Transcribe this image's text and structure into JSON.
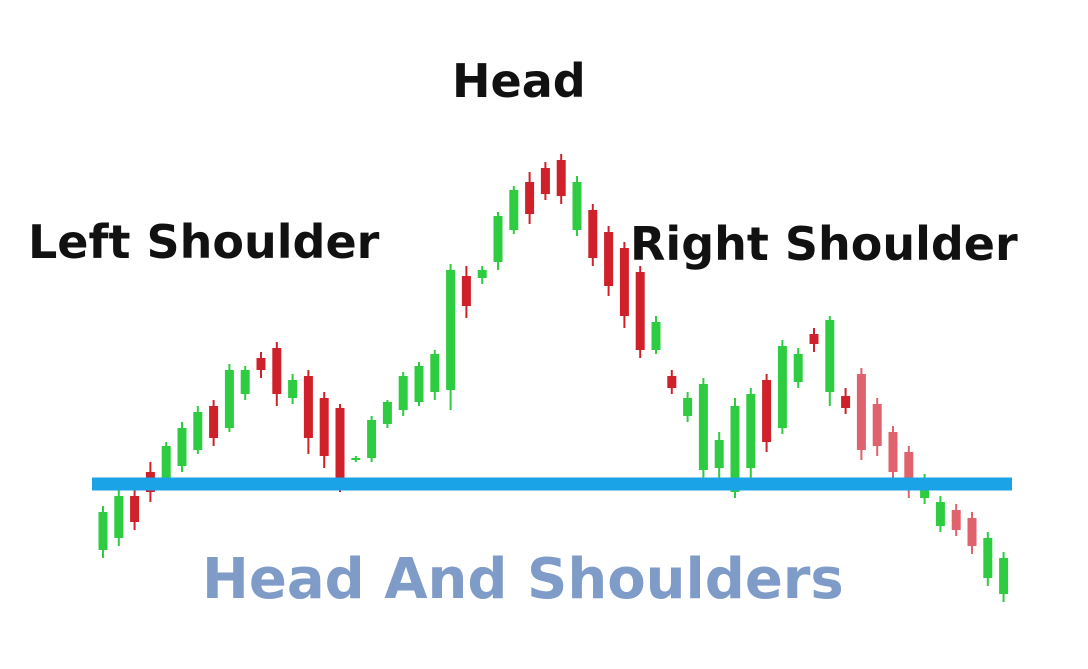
{
  "chart_data": {
    "type": "candlestick",
    "title": "Head And Shoulders",
    "annotations": [
      "Left Shoulder",
      "Head",
      "Right Shoulder"
    ],
    "neckline": {
      "y": 4.3,
      "color": "#1aa3e6"
    },
    "grid": false,
    "ylim": [
      0,
      22
    ],
    "colors": {
      "up": "#2ecc40",
      "down": "#d0212b",
      "down_light": "#e0626c",
      "title": "#7f9bc7"
    },
    "candles": [
      {
        "x": 1,
        "open": 1.0,
        "high": 3.2,
        "low": 0.6,
        "close": 2.9
      },
      {
        "x": 2,
        "open": 1.6,
        "high": 4.0,
        "low": 1.2,
        "close": 3.7
      },
      {
        "x": 3,
        "open": 3.7,
        "high": 4.2,
        "low": 2.0,
        "close": 2.4
      },
      {
        "x": 4,
        "open": 4.9,
        "high": 5.4,
        "low": 3.4,
        "close": 3.9
      },
      {
        "x": 5,
        "open": 4.4,
        "high": 6.4,
        "low": 4.2,
        "close": 6.2
      },
      {
        "x": 6,
        "open": 5.2,
        "high": 7.4,
        "low": 4.9,
        "close": 7.1
      },
      {
        "x": 7,
        "open": 6.0,
        "high": 8.2,
        "low": 5.8,
        "close": 7.9
      },
      {
        "x": 8,
        "open": 8.2,
        "high": 8.5,
        "low": 6.2,
        "close": 6.6
      },
      {
        "x": 9,
        "open": 7.1,
        "high": 10.3,
        "low": 6.9,
        "close": 10.0
      },
      {
        "x": 10,
        "open": 8.8,
        "high": 10.2,
        "low": 8.5,
        "close": 10.0
      },
      {
        "x": 11,
        "open": 10.6,
        "high": 10.9,
        "low": 9.6,
        "close": 10.0
      },
      {
        "x": 12,
        "open": 11.1,
        "high": 11.4,
        "low": 8.2,
        "close": 8.8
      },
      {
        "x": 13,
        "open": 8.6,
        "high": 9.8,
        "low": 8.3,
        "close": 9.5
      },
      {
        "x": 14,
        "open": 9.7,
        "high": 10.0,
        "low": 5.8,
        "close": 6.6
      },
      {
        "x": 15,
        "open": 8.6,
        "high": 8.9,
        "low": 5.1,
        "close": 5.7
      },
      {
        "x": 16,
        "open": 8.1,
        "high": 8.3,
        "low": 3.9,
        "close": 4.3
      },
      {
        "x": 17,
        "open": 5.5,
        "high": 5.7,
        "low": 5.4,
        "close": 5.6
      },
      {
        "x": 18,
        "open": 5.6,
        "high": 7.7,
        "low": 5.4,
        "close": 7.5
      },
      {
        "x": 19,
        "open": 7.3,
        "high": 8.5,
        "low": 7.1,
        "close": 8.4
      },
      {
        "x": 20,
        "open": 8.0,
        "high": 9.9,
        "low": 7.7,
        "close": 9.7
      },
      {
        "x": 21,
        "open": 8.4,
        "high": 10.4,
        "low": 8.2,
        "close": 10.2
      },
      {
        "x": 22,
        "open": 8.9,
        "high": 11.0,
        "low": 8.5,
        "close": 10.8
      },
      {
        "x": 23,
        "open": 9.0,
        "high": 15.3,
        "low": 8.0,
        "close": 15.0
      },
      {
        "x": 24,
        "open": 14.7,
        "high": 15.2,
        "low": 12.6,
        "close": 13.2
      },
      {
        "x": 25,
        "open": 14.6,
        "high": 15.2,
        "low": 14.3,
        "close": 15.0
      },
      {
        "x": 26,
        "open": 15.4,
        "high": 17.9,
        "low": 15.0,
        "close": 17.7
      },
      {
        "x": 27,
        "open": 17.0,
        "high": 19.2,
        "low": 16.8,
        "close": 19.0
      },
      {
        "x": 28,
        "open": 19.4,
        "high": 19.9,
        "low": 17.3,
        "close": 17.8
      },
      {
        "x": 29,
        "open": 20.1,
        "high": 20.4,
        "low": 18.5,
        "close": 18.8
      },
      {
        "x": 30,
        "open": 20.5,
        "high": 20.8,
        "low": 18.3,
        "close": 18.7
      },
      {
        "x": 31,
        "open": 17.0,
        "high": 19.7,
        "low": 16.7,
        "close": 19.4
      },
      {
        "x": 32,
        "open": 18.0,
        "high": 18.3,
        "low": 15.2,
        "close": 15.6
      },
      {
        "x": 33,
        "open": 16.9,
        "high": 17.2,
        "low": 13.7,
        "close": 14.2
      },
      {
        "x": 34,
        "open": 16.1,
        "high": 16.4,
        "low": 12.1,
        "close": 12.7
      },
      {
        "x": 35,
        "open": 14.9,
        "high": 15.2,
        "low": 10.6,
        "close": 11.0
      },
      {
        "x": 36,
        "open": 11.0,
        "high": 12.7,
        "low": 10.8,
        "close": 12.4
      },
      {
        "x": 37,
        "open": 9.7,
        "high": 10.0,
        "low": 8.8,
        "close": 9.1
      },
      {
        "x": 38,
        "open": 7.7,
        "high": 8.9,
        "low": 7.4,
        "close": 8.6
      },
      {
        "x": 39,
        "open": 5.0,
        "high": 9.6,
        "low": 4.6,
        "close": 9.3
      },
      {
        "x": 40,
        "open": 5.1,
        "high": 6.9,
        "low": 4.5,
        "close": 6.5
      },
      {
        "x": 41,
        "open": 3.9,
        "high": 8.6,
        "low": 3.6,
        "close": 8.2
      },
      {
        "x": 42,
        "open": 5.1,
        "high": 9.1,
        "low": 4.6,
        "close": 8.8
      },
      {
        "x": 43,
        "open": 9.5,
        "high": 9.8,
        "low": 5.9,
        "close": 6.4
      },
      {
        "x": 44,
        "open": 7.1,
        "high": 11.5,
        "low": 6.8,
        "close": 11.2
      },
      {
        "x": 45,
        "open": 9.4,
        "high": 11.1,
        "low": 9.1,
        "close": 10.8
      },
      {
        "x": 46,
        "open": 11.8,
        "high": 12.1,
        "low": 10.9,
        "close": 11.3
      },
      {
        "x": 47,
        "open": 8.9,
        "high": 12.7,
        "low": 8.2,
        "close": 12.5
      },
      {
        "x": 48,
        "open": 8.7,
        "high": 9.1,
        "low": 7.8,
        "close": 8.1
      },
      {
        "x": 49,
        "open": 9.8,
        "high": 10.1,
        "low": 5.5,
        "close": 6.0
      },
      {
        "x": 50,
        "open": 8.3,
        "high": 8.6,
        "low": 5.7,
        "close": 6.2
      },
      {
        "x": 51,
        "open": 6.9,
        "high": 7.2,
        "low": 4.5,
        "close": 4.9
      },
      {
        "x": 52,
        "open": 5.9,
        "high": 6.2,
        "low": 3.6,
        "close": 4.0
      },
      {
        "x": 53,
        "open": 3.6,
        "high": 4.8,
        "low": 3.3,
        "close": 4.5
      },
      {
        "x": 54,
        "open": 2.2,
        "high": 3.7,
        "low": 1.9,
        "close": 3.4
      },
      {
        "x": 55,
        "open": 3.0,
        "high": 3.3,
        "low": 1.7,
        "close": 2.0
      },
      {
        "x": 56,
        "open": 2.6,
        "high": 2.9,
        "low": 0.8,
        "close": 1.2
      },
      {
        "x": 57,
        "open": -0.4,
        "high": 1.9,
        "low": -0.8,
        "close": 1.6
      },
      {
        "x": 58,
        "open": -1.2,
        "high": 0.9,
        "low": -1.6,
        "close": 0.6
      }
    ]
  }
}
